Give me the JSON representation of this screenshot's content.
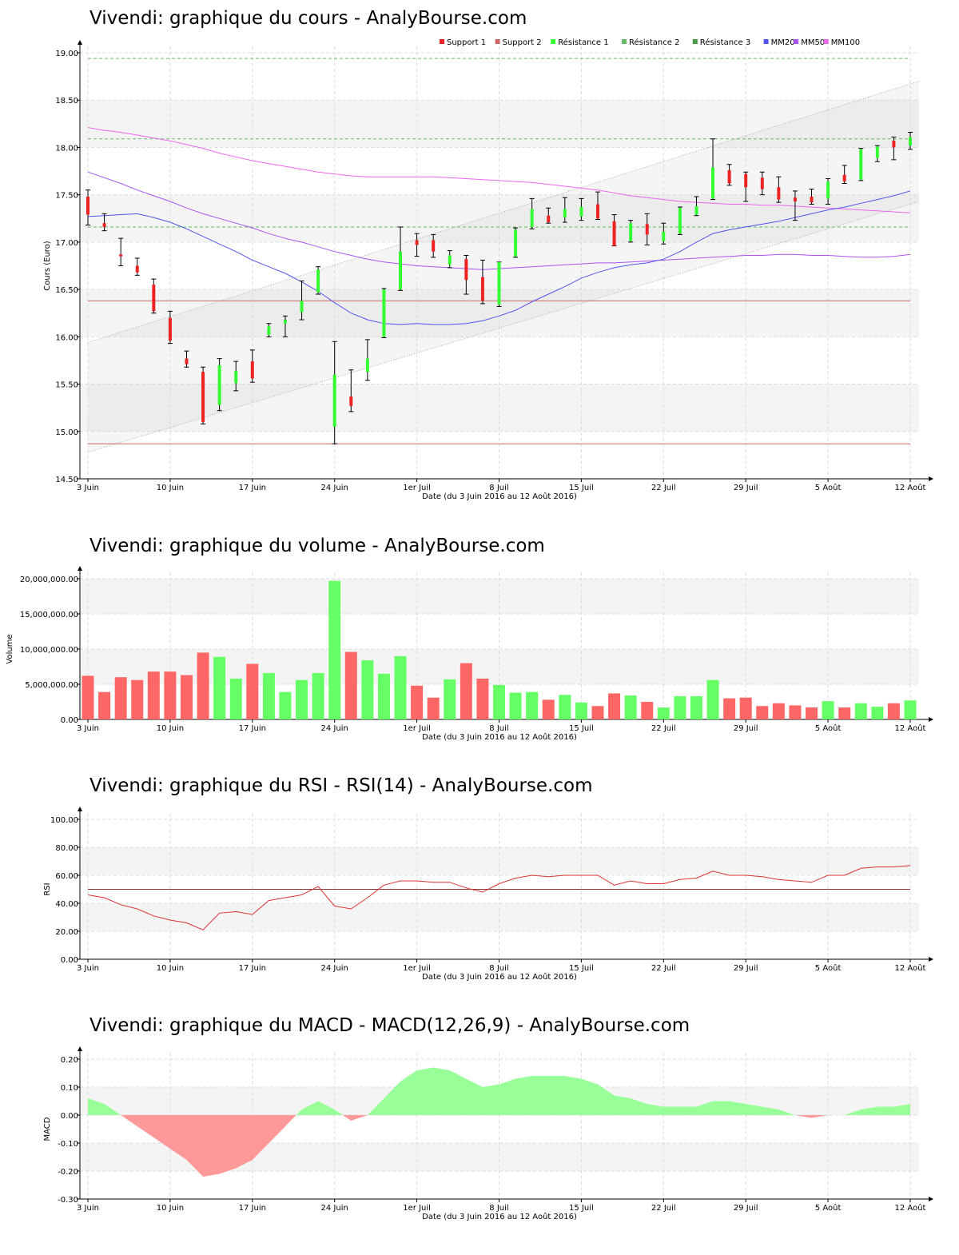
{
  "colors": {
    "up": "#33ff33",
    "down": "#ee2222",
    "support": "#cc6666",
    "resistance": "#66bb66",
    "mm20": "#5555ee",
    "mm50": "#aa55ee",
    "mm100": "#ee66ee",
    "vol_up": "#66ff66",
    "vol_down": "#ff6666",
    "macd_pos": "#99ff99",
    "macd_neg": "#ff9999",
    "rsi_line": "#dd3333",
    "rsi_mid": "#883333"
  },
  "chart_data": [
    {
      "id": "price",
      "type": "candlestick",
      "title": "Vivendi: graphique du cours - AnalyBourse.com",
      "ylabel": "Cours (Euro)",
      "xlabel": "Date (du 3 Juin 2016 au 12 Août 2016)",
      "ylim": [
        14.5,
        19.0
      ],
      "yticks": [
        "14.50",
        "15.00",
        "15.50",
        "16.00",
        "16.50",
        "17.00",
        "17.50",
        "18.00",
        "18.50",
        "19.00"
      ],
      "xticks": [
        {
          "label": "3 Juin",
          "i": 0
        },
        {
          "label": "10 Juin",
          "i": 5
        },
        {
          "label": "17 Juin",
          "i": 10
        },
        {
          "label": "24 Juin",
          "i": 15
        },
        {
          "label": "1er Juil",
          "i": 20
        },
        {
          "label": "8 Juil",
          "i": 25
        },
        {
          "label": "15 Juil",
          "i": 30
        },
        {
          "label": "22 Juil",
          "i": 35
        },
        {
          "label": "29 Juil",
          "i": 40
        },
        {
          "label": "5 Août",
          "i": 45
        },
        {
          "label": "12 Août",
          "i": 50
        }
      ],
      "legend": [
        "Support 1",
        "Support 2",
        "Résistance 1",
        "Résistance 2",
        "Résistance 3",
        "MM20",
        "MM50",
        "MM100"
      ],
      "legend_position": "top-right",
      "grid": true,
      "levels": {
        "support1": 14.87,
        "support2": 16.38,
        "resistance1": 17.16,
        "resistance2": 18.09,
        "resistance3": 18.94
      },
      "channel": {
        "lower": [
          14.78,
          17.43
        ],
        "upper": [
          15.94,
          18.7
        ]
      },
      "ohlc": [
        [
          17.48,
          17.55,
          17.18,
          17.29
        ],
        [
          17.2,
          17.3,
          17.12,
          17.16
        ],
        [
          16.87,
          17.04,
          16.75,
          16.85
        ],
        [
          16.75,
          16.83,
          16.65,
          16.68
        ],
        [
          16.55,
          16.61,
          16.25,
          16.27
        ],
        [
          16.2,
          16.27,
          15.93,
          15.96
        ],
        [
          15.77,
          15.85,
          15.68,
          15.71
        ],
        [
          15.63,
          15.68,
          15.08,
          15.1
        ],
        [
          15.28,
          15.77,
          15.22,
          15.7
        ],
        [
          15.51,
          15.74,
          15.43,
          15.64
        ],
        [
          15.74,
          15.86,
          15.52,
          15.56
        ],
        [
          16.02,
          16.14,
          16.0,
          16.11
        ],
        [
          16.14,
          16.22,
          16.0,
          16.18
        ],
        [
          16.26,
          16.59,
          16.18,
          16.38
        ],
        [
          16.47,
          16.74,
          16.45,
          16.71
        ],
        [
          15.05,
          15.95,
          14.87,
          15.6
        ],
        [
          15.37,
          15.65,
          15.21,
          15.27
        ],
        [
          15.63,
          15.97,
          15.54,
          15.77
        ],
        [
          16.0,
          16.51,
          15.99,
          16.5
        ],
        [
          16.5,
          17.16,
          16.49,
          16.9
        ],
        [
          17.02,
          17.09,
          16.85,
          16.97
        ],
        [
          17.02,
          17.08,
          16.84,
          16.9
        ],
        [
          16.76,
          16.91,
          16.73,
          16.86
        ],
        [
          16.82,
          16.86,
          16.45,
          16.6
        ],
        [
          16.63,
          16.81,
          16.35,
          16.38
        ],
        [
          16.34,
          16.79,
          16.32,
          16.79
        ],
        [
          16.85,
          17.15,
          16.84,
          17.13
        ],
        [
          17.16,
          17.46,
          17.14,
          17.35
        ],
        [
          17.28,
          17.36,
          17.2,
          17.21
        ],
        [
          17.26,
          17.47,
          17.21,
          17.35
        ],
        [
          17.27,
          17.46,
          17.23,
          17.37
        ],
        [
          17.4,
          17.53,
          17.24,
          17.25
        ],
        [
          17.22,
          17.29,
          16.96,
          16.96
        ],
        [
          17.01,
          17.23,
          17.0,
          17.2
        ],
        [
          17.19,
          17.3,
          16.97,
          17.08
        ],
        [
          17.01,
          17.2,
          16.98,
          17.11
        ],
        [
          17.09,
          17.37,
          17.08,
          17.36
        ],
        [
          17.29,
          17.48,
          17.28,
          17.38
        ],
        [
          17.46,
          18.09,
          17.45,
          17.79
        ],
        [
          17.76,
          17.82,
          17.6,
          17.62
        ],
        [
          17.72,
          17.74,
          17.43,
          17.58
        ],
        [
          17.68,
          17.74,
          17.5,
          17.56
        ],
        [
          17.58,
          17.69,
          17.42,
          17.45
        ],
        [
          17.47,
          17.54,
          17.23,
          17.43
        ],
        [
          17.48,
          17.56,
          17.4,
          17.42
        ],
        [
          17.46,
          17.67,
          17.4,
          17.64
        ],
        [
          17.71,
          17.81,
          17.62,
          17.64
        ],
        [
          17.66,
          17.99,
          17.65,
          17.98
        ],
        [
          17.89,
          18.02,
          17.85,
          18.01
        ],
        [
          18.07,
          18.11,
          17.87,
          18.0
        ],
        [
          18.02,
          18.16,
          17.98,
          18.11
        ]
      ],
      "mm20": [
        17.27,
        17.28,
        17.29,
        17.3,
        17.26,
        17.21,
        17.14,
        17.06,
        16.98,
        16.9,
        16.81,
        16.74,
        16.67,
        16.58,
        16.48,
        16.36,
        16.25,
        16.18,
        16.14,
        16.13,
        16.14,
        16.13,
        16.13,
        16.14,
        16.17,
        16.22,
        16.28,
        16.37,
        16.45,
        16.53,
        16.62,
        16.68,
        16.73,
        16.76,
        16.78,
        16.82,
        16.9,
        17.0,
        17.09,
        17.13,
        17.16,
        17.19,
        17.22,
        17.26,
        17.3,
        17.34,
        17.37,
        17.41,
        17.45,
        17.49,
        17.54
      ],
      "mm50": [
        17.74,
        17.68,
        17.62,
        17.55,
        17.49,
        17.43,
        17.36,
        17.3,
        17.25,
        17.2,
        17.15,
        17.09,
        17.04,
        17.0,
        16.95,
        16.9,
        16.86,
        16.82,
        16.79,
        16.77,
        16.75,
        16.74,
        16.73,
        16.72,
        16.71,
        16.72,
        16.73,
        16.74,
        16.75,
        16.76,
        16.77,
        16.78,
        16.78,
        16.79,
        16.8,
        16.81,
        16.82,
        16.83,
        16.84,
        16.85,
        16.86,
        16.86,
        16.87,
        16.87,
        16.86,
        16.86,
        16.85,
        16.84,
        16.84,
        16.85,
        16.87
      ],
      "mm100": [
        18.21,
        18.18,
        18.16,
        18.13,
        18.1,
        18.07,
        18.03,
        17.99,
        17.94,
        17.9,
        17.86,
        17.83,
        17.8,
        17.77,
        17.74,
        17.72,
        17.7,
        17.69,
        17.69,
        17.69,
        17.69,
        17.69,
        17.68,
        17.67,
        17.66,
        17.65,
        17.64,
        17.63,
        17.61,
        17.59,
        17.57,
        17.55,
        17.52,
        17.49,
        17.47,
        17.45,
        17.43,
        17.42,
        17.41,
        17.4,
        17.4,
        17.39,
        17.39,
        17.38,
        17.37,
        17.36,
        17.35,
        17.34,
        17.33,
        17.32,
        17.31
      ]
    },
    {
      "id": "volume",
      "type": "bar",
      "title": "Vivendi: graphique du volume - AnalyBourse.com",
      "ylabel": "Volume",
      "xlabel": "Date (du 3 Juin 2016 au 12 Août 2016)",
      "ylim": [
        0,
        20000000
      ],
      "yticks": [
        "0.00",
        "5,000,000.00",
        "10,000,000.00",
        "15,000,000.00",
        "20,000,000.00"
      ],
      "grid": true,
      "values": [
        6200000,
        3900000,
        6000000,
        5600000,
        6800000,
        6800000,
        6300000,
        9500000,
        8900000,
        5800000,
        7900000,
        6600000,
        3900000,
        5600000,
        6600000,
        19700000,
        9600000,
        8400000,
        6500000,
        9000000,
        4800000,
        3100000,
        5700000,
        8000000,
        5800000,
        4900000,
        3800000,
        3900000,
        2800000,
        3500000,
        2400000,
        1900000,
        3700000,
        3400000,
        2500000,
        1700000,
        3300000,
        3300000,
        5600000,
        3000000,
        3100000,
        1900000,
        2300000,
        2000000,
        1700000,
        2600000,
        1700000,
        2300000,
        1800000,
        2300000,
        2700000
      ],
      "up": [
        false,
        false,
        false,
        false,
        false,
        false,
        false,
        false,
        true,
        true,
        false,
        true,
        true,
        true,
        true,
        true,
        false,
        true,
        true,
        true,
        false,
        false,
        true,
        false,
        false,
        true,
        true,
        true,
        false,
        true,
        true,
        false,
        false,
        true,
        false,
        true,
        true,
        true,
        true,
        false,
        false,
        false,
        false,
        false,
        false,
        true,
        false,
        true,
        true,
        false,
        true
      ]
    },
    {
      "id": "rsi",
      "type": "line",
      "title": "Vivendi: graphique du RSI - RSI(14) - AnalyBourse.com",
      "ylabel": "RSI",
      "xlabel": "Date (du 3 Juin 2016 au 12 Août 2016)",
      "ylim": [
        0,
        100
      ],
      "yticks": [
        "0.00",
        "20.00",
        "40.00",
        "60.00",
        "80.00",
        "100.00"
      ],
      "grid": true,
      "midline": 50,
      "values": [
        46,
        44,
        39,
        36,
        31,
        28,
        26,
        21,
        33,
        34,
        32,
        42,
        44,
        46,
        52,
        38,
        36,
        44,
        53,
        56,
        56,
        55,
        55,
        51,
        48,
        54,
        58,
        60,
        59,
        60,
        60,
        60,
        53,
        56,
        54,
        54,
        57,
        58,
        63,
        60,
        60,
        59,
        57,
        56,
        55,
        60,
        60,
        65,
        66,
        66,
        67
      ]
    },
    {
      "id": "macd",
      "type": "area",
      "title": "Vivendi: graphique du MACD - MACD(12,26,9) - AnalyBourse.com",
      "ylabel": "MACD",
      "xlabel": "Date (du 3 Juin 2016 au 12 Août 2016)",
      "ylim": [
        -0.3,
        0.2
      ],
      "yticks": [
        "-0.30",
        "-0.20",
        "-0.10",
        "0.00",
        "0.10",
        "0.20"
      ],
      "grid": true,
      "values": [
        0.06,
        0.04,
        0.0,
        -0.04,
        -0.08,
        -0.12,
        -0.16,
        -0.22,
        -0.21,
        -0.19,
        -0.16,
        -0.1,
        -0.04,
        0.02,
        0.05,
        0.02,
        -0.02,
        0.0,
        0.06,
        0.12,
        0.16,
        0.17,
        0.16,
        0.13,
        0.1,
        0.11,
        0.13,
        0.14,
        0.14,
        0.14,
        0.13,
        0.11,
        0.07,
        0.06,
        0.04,
        0.03,
        0.03,
        0.03,
        0.05,
        0.05,
        0.04,
        0.03,
        0.02,
        0.0,
        -0.01,
        0.0,
        0.0,
        0.02,
        0.03,
        0.03,
        0.04
      ]
    }
  ]
}
